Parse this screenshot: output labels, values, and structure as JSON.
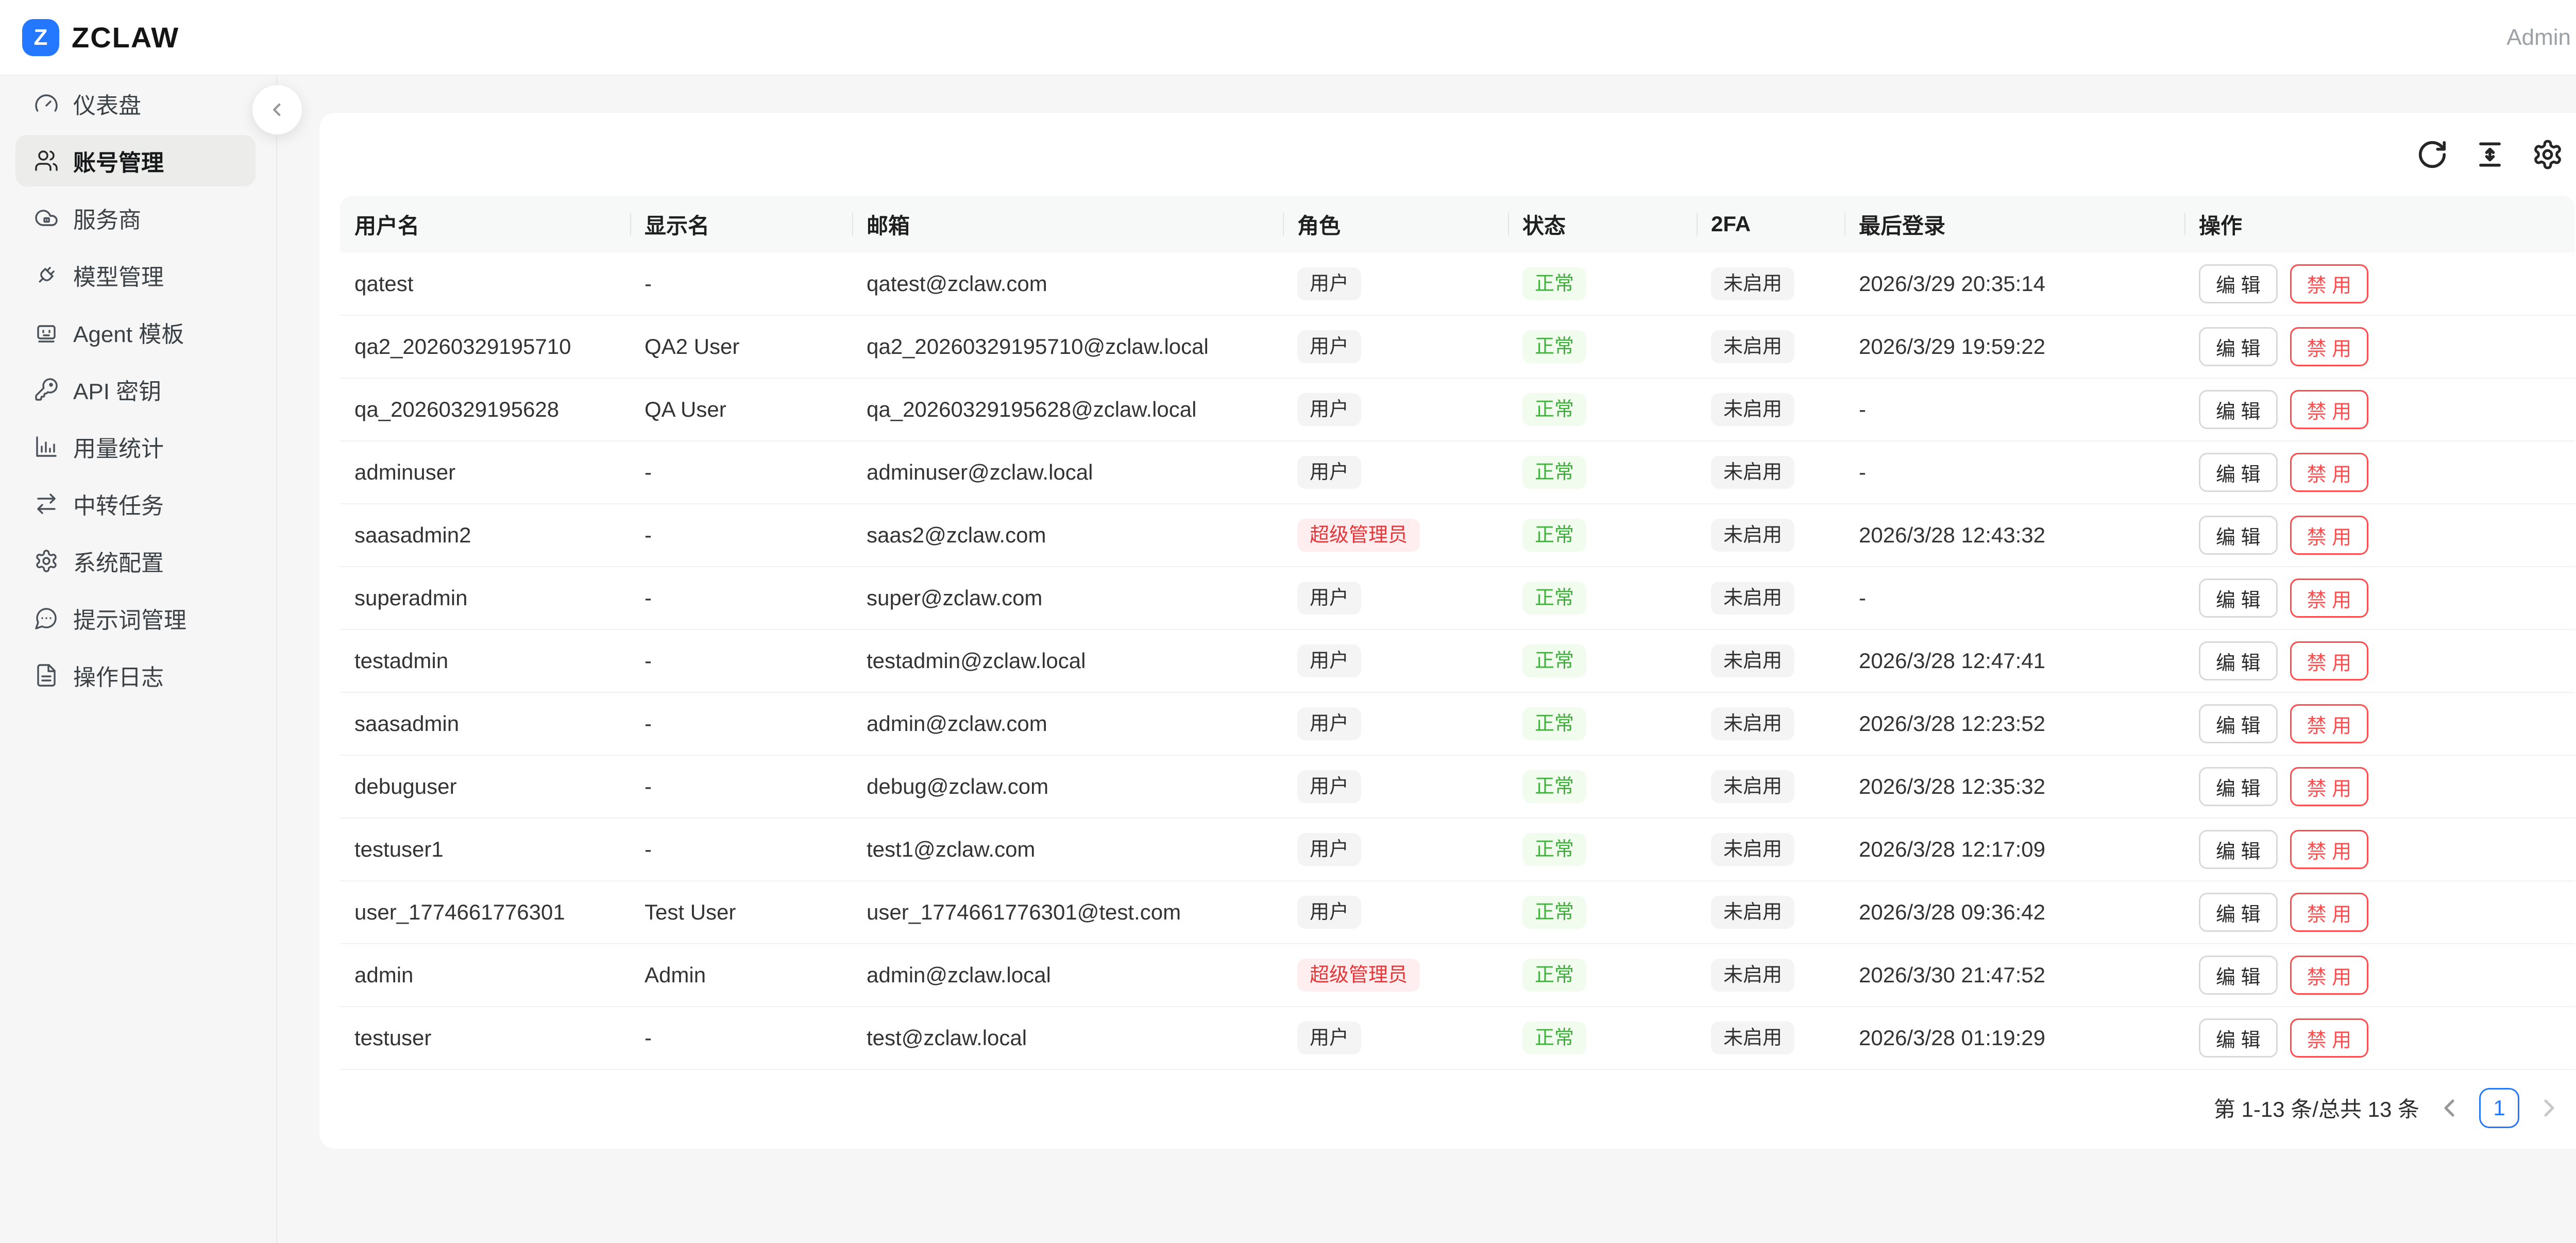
{
  "brand": {
    "logo_letter": "Z",
    "name": "ZCLAW"
  },
  "header": {
    "user_label": "Admin"
  },
  "sidebar": {
    "items": [
      {
        "key": "dashboard",
        "label": "仪表盘",
        "icon": "gauge-icon",
        "selected": false
      },
      {
        "key": "accounts",
        "label": "账号管理",
        "icon": "users-icon",
        "selected": true
      },
      {
        "key": "providers",
        "label": "服务商",
        "icon": "cloud-icon",
        "selected": false
      },
      {
        "key": "models",
        "label": "模型管理",
        "icon": "plug-icon",
        "selected": false
      },
      {
        "key": "agent-templates",
        "label": "Agent 模板",
        "icon": "bot-icon",
        "selected": false
      },
      {
        "key": "api-keys",
        "label": "API 密钥",
        "icon": "key-icon",
        "selected": false
      },
      {
        "key": "usage-stats",
        "label": "用量统计",
        "icon": "bar-chart-icon",
        "selected": false
      },
      {
        "key": "relay-tasks",
        "label": "中转任务",
        "icon": "swap-icon",
        "selected": false
      },
      {
        "key": "system-config",
        "label": "系统配置",
        "icon": "gear-icon",
        "selected": false
      },
      {
        "key": "prompts",
        "label": "提示词管理",
        "icon": "message-icon",
        "selected": false
      },
      {
        "key": "op-logs",
        "label": "操作日志",
        "icon": "file-icon",
        "selected": false
      }
    ]
  },
  "toolbar": {
    "icons": [
      "refresh-icon",
      "column-height-icon",
      "settings-icon"
    ]
  },
  "table": {
    "columns": [
      "用户名",
      "显示名",
      "邮箱",
      "角色",
      "状态",
      "2FA",
      "最后登录",
      "操作"
    ],
    "actions": {
      "edit": "编 辑",
      "disable": "禁 用"
    },
    "rows": [
      {
        "username": "qatest",
        "display_name": "-",
        "email": "qatest@zclaw.com",
        "role": "用户",
        "role_type": "user",
        "status": "正常",
        "twofa": "未启用",
        "last_login": "2026/3/29 20:35:14"
      },
      {
        "username": "qa2_20260329195710",
        "display_name": "QA2 User",
        "email": "qa2_20260329195710@zclaw.local",
        "role": "用户",
        "role_type": "user",
        "status": "正常",
        "twofa": "未启用",
        "last_login": "2026/3/29 19:59:22"
      },
      {
        "username": "qa_20260329195628",
        "display_name": "QA User",
        "email": "qa_20260329195628@zclaw.local",
        "role": "用户",
        "role_type": "user",
        "status": "正常",
        "twofa": "未启用",
        "last_login": "-"
      },
      {
        "username": "adminuser",
        "display_name": "-",
        "email": "adminuser@zclaw.local",
        "role": "用户",
        "role_type": "user",
        "status": "正常",
        "twofa": "未启用",
        "last_login": "-"
      },
      {
        "username": "saasadmin2",
        "display_name": "-",
        "email": "saas2@zclaw.com",
        "role": "超级管理员",
        "role_type": "super",
        "status": "正常",
        "twofa": "未启用",
        "last_login": "2026/3/28 12:43:32"
      },
      {
        "username": "superadmin",
        "display_name": "-",
        "email": "super@zclaw.com",
        "role": "用户",
        "role_type": "user",
        "status": "正常",
        "twofa": "未启用",
        "last_login": "-"
      },
      {
        "username": "testadmin",
        "display_name": "-",
        "email": "testadmin@zclaw.local",
        "role": "用户",
        "role_type": "user",
        "status": "正常",
        "twofa": "未启用",
        "last_login": "2026/3/28 12:47:41"
      },
      {
        "username": "saasadmin",
        "display_name": "-",
        "email": "admin@zclaw.com",
        "role": "用户",
        "role_type": "user",
        "status": "正常",
        "twofa": "未启用",
        "last_login": "2026/3/28 12:23:52"
      },
      {
        "username": "debuguser",
        "display_name": "-",
        "email": "debug@zclaw.com",
        "role": "用户",
        "role_type": "user",
        "status": "正常",
        "twofa": "未启用",
        "last_login": "2026/3/28 12:35:32"
      },
      {
        "username": "testuser1",
        "display_name": "-",
        "email": "test1@zclaw.com",
        "role": "用户",
        "role_type": "user",
        "status": "正常",
        "twofa": "未启用",
        "last_login": "2026/3/28 12:17:09"
      },
      {
        "username": "user_1774661776301",
        "display_name": "Test User",
        "email": "user_1774661776301@test.com",
        "role": "用户",
        "role_type": "user",
        "status": "正常",
        "twofa": "未启用",
        "last_login": "2026/3/28 09:36:42"
      },
      {
        "username": "admin",
        "display_name": "Admin",
        "email": "admin@zclaw.local",
        "role": "超级管理员",
        "role_type": "super",
        "status": "正常",
        "twofa": "未启用",
        "last_login": "2026/3/30 21:47:52"
      },
      {
        "username": "testuser",
        "display_name": "-",
        "email": "test@zclaw.local",
        "role": "用户",
        "role_type": "user",
        "status": "正常",
        "twofa": "未启用",
        "last_login": "2026/3/28 01:19:29"
      }
    ]
  },
  "pagination": {
    "total_text": "第 1-13 条/总共 13 条",
    "current_page": "1"
  },
  "colors": {
    "accent_blue": "#2478ff",
    "pagination_blue": "#2678f6",
    "danger_red": "#ff4d4f",
    "role_red_text": "#e5383b",
    "role_red_bg": "#ffeef0",
    "status_green_text": "#3db13a",
    "status_green_bg": "#f1fbee",
    "tag_gray_bg": "#f4f4f4",
    "page_bg": "#f5f6f5",
    "card_bg": "#ffffff"
  }
}
